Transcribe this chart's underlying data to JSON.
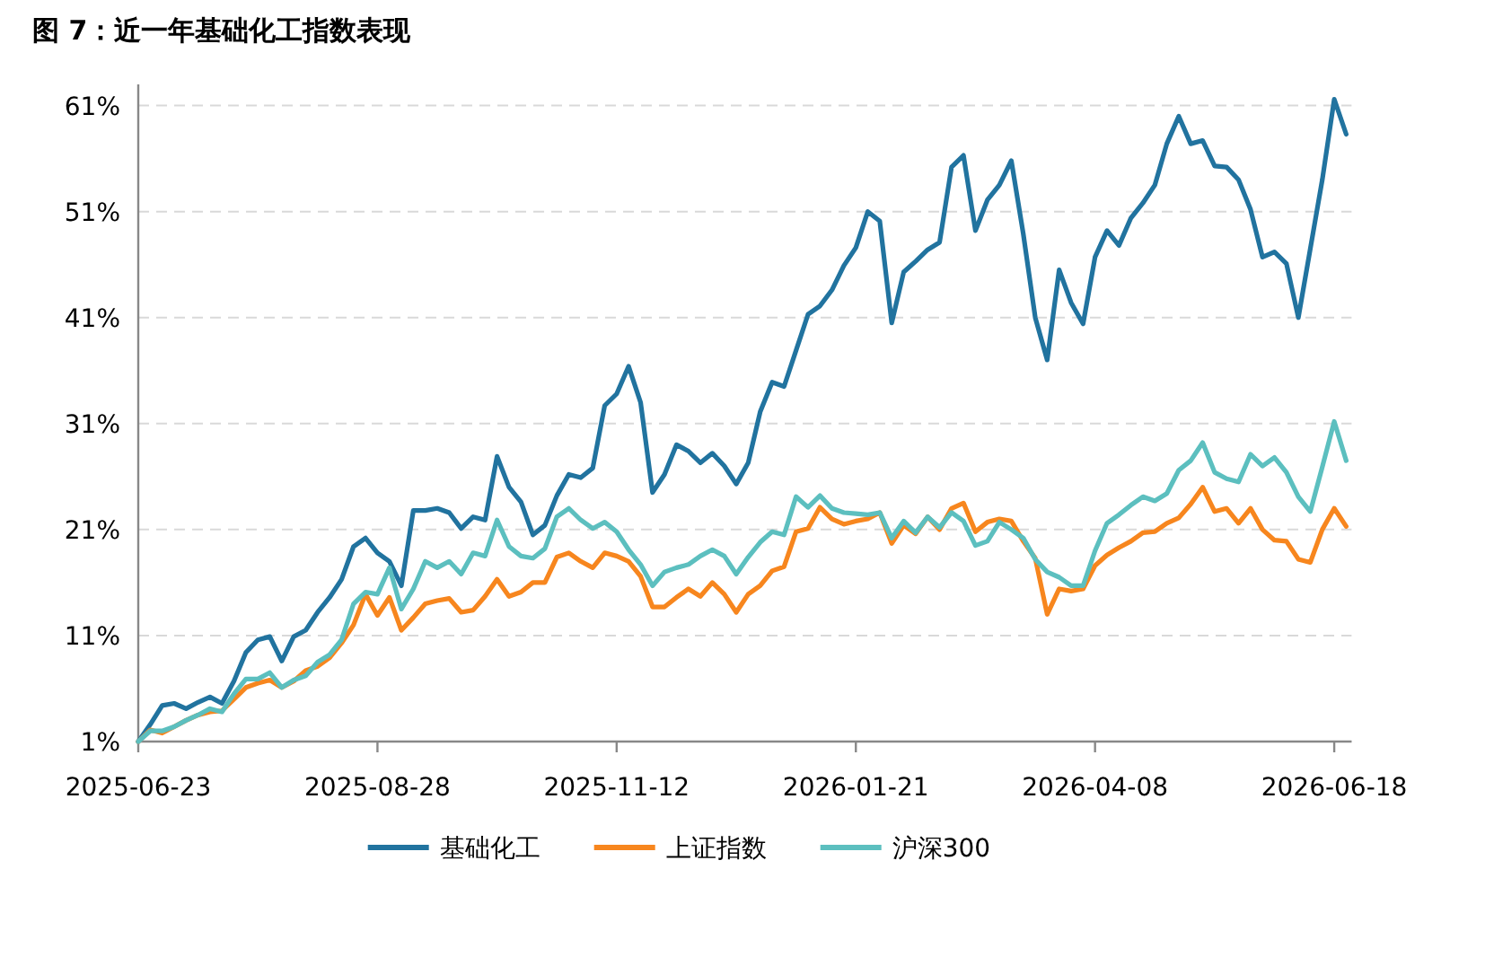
{
  "chart_data": {
    "type": "line",
    "title": "图 7：近一年基础化工指数表现",
    "categories": [
      "2025-06-23",
      null,
      null,
      null,
      null,
      null,
      null,
      null,
      null,
      null,
      null,
      null,
      null,
      null,
      null,
      null,
      null,
      null,
      null,
      null,
      "2025-08-28",
      null,
      null,
      null,
      null,
      null,
      null,
      null,
      null,
      null,
      null,
      null,
      null,
      null,
      null,
      null,
      null,
      null,
      null,
      null,
      "2025-11-12",
      null,
      null,
      null,
      null,
      null,
      null,
      null,
      null,
      null,
      null,
      null,
      null,
      null,
      null,
      null,
      null,
      null,
      null,
      null,
      "2026-01-21",
      null,
      null,
      null,
      null,
      null,
      null,
      null,
      null,
      null,
      null,
      null,
      null,
      null,
      null,
      null,
      null,
      null,
      null,
      null,
      "2026-04-08",
      null,
      null,
      null,
      null,
      null,
      null,
      null,
      null,
      null,
      null,
      null,
      null,
      null,
      null,
      null,
      null,
      null,
      null,
      null,
      "2026-06-18",
      null
    ],
    "series": [
      {
        "name": "基础化工",
        "color": "#21739f",
        "values": [
          1,
          2.6,
          4.4,
          4.6,
          4.1,
          4.7,
          5.2,
          4.6,
          6.7,
          9.4,
          10.6,
          10.9,
          8.6,
          10.9,
          11.5,
          13.2,
          14.6,
          16.3,
          19.4,
          20.2,
          18.8,
          18,
          15.7,
          22.8,
          22.8,
          23,
          22.6,
          21.1,
          22.2,
          21.9,
          27.9,
          25,
          23.6,
          20.5,
          21.4,
          24.2,
          26.2,
          25.9,
          26.8,
          32.7,
          33.8,
          36.4,
          33,
          24.5,
          26.2,
          29,
          28.4,
          27.3,
          28.2,
          27,
          25.3,
          27.3,
          32.1,
          34.9,
          34.5,
          37.9,
          41.3,
          42.1,
          43.6,
          45.9,
          47.6,
          51,
          50.1,
          40.5,
          45.3,
          46.3,
          47.4,
          48.1,
          55.2,
          56.3,
          49.2,
          52.1,
          53.5,
          55.8,
          48.9,
          41,
          37,
          45.5,
          42.4,
          40.4,
          46.7,
          49.2,
          47.8,
          50.4,
          51.8,
          53.5,
          57.4,
          60,
          57.4,
          57.7,
          55.3,
          55.2,
          54,
          51.2,
          46.7,
          47.2,
          46.1,
          41,
          47.5,
          54,
          61.6,
          58.3
        ]
      },
      {
        "name": "上证指数",
        "color": "#f7861e",
        "values": [
          1,
          2.1,
          1.8,
          2.4,
          3,
          3.5,
          3.8,
          3.9,
          5,
          6.1,
          6.5,
          6.8,
          6.1,
          6.7,
          7.7,
          8.1,
          8.9,
          10.3,
          12,
          14.9,
          12.9,
          14.6,
          11.5,
          12.7,
          14,
          14.3,
          14.5,
          13.2,
          13.4,
          14.7,
          16.3,
          14.7,
          15.1,
          16,
          16,
          18.4,
          18.8,
          18,
          17.4,
          18.8,
          18.5,
          18,
          16.6,
          13.7,
          13.7,
          14.6,
          15.4,
          14.7,
          16,
          14.9,
          13.2,
          14.9,
          15.7,
          17.1,
          17.5,
          20.8,
          21.1,
          23.1,
          22,
          21.5,
          21.8,
          22,
          22.6,
          19.7,
          21.4,
          20.6,
          22.2,
          21,
          23,
          23.5,
          20.8,
          21.7,
          22,
          21.8,
          19.9,
          18.3,
          13,
          15.4,
          15.2,
          15.4,
          17.6,
          18.6,
          19.3,
          19.9,
          20.7,
          20.8,
          21.6,
          22.1,
          23.4,
          25,
          22.7,
          23,
          21.6,
          23,
          21,
          20,
          19.9,
          18.2,
          17.9,
          21,
          23,
          21.3
        ]
      },
      {
        "name": "沪深300",
        "color": "#5cbfbf",
        "values": [
          1,
          2,
          2,
          2.4,
          3,
          3.5,
          4.1,
          3.8,
          5.5,
          6.9,
          6.9,
          7.5,
          6.1,
          6.8,
          7.2,
          8.5,
          9.2,
          10.6,
          14,
          15.1,
          14.9,
          17.4,
          13.5,
          15.4,
          18,
          17.4,
          18,
          16.8,
          18.8,
          18.5,
          21.9,
          19.4,
          18.5,
          18.3,
          19.2,
          22.2,
          23,
          21.9,
          21.1,
          21.7,
          20.8,
          19.1,
          17.7,
          15.7,
          17,
          17.4,
          17.7,
          18.5,
          19.1,
          18.5,
          16.8,
          18.4,
          19.8,
          20.8,
          20.5,
          24.1,
          23.1,
          24.2,
          23,
          22.6,
          22.5,
          22.4,
          22.6,
          20.2,
          21.8,
          20.7,
          22.2,
          21.2,
          22.6,
          21.8,
          19.5,
          19.9,
          21.7,
          21,
          20.2,
          18.2,
          17,
          16.5,
          15.7,
          15.7,
          19,
          21.6,
          22.4,
          23.3,
          24.1,
          23.7,
          24.4,
          26.6,
          27.5,
          29.2,
          26.4,
          25.8,
          25.5,
          28.1,
          27,
          27.8,
          26.4,
          24.1,
          22.7,
          26.9,
          31.2,
          27.5
        ]
      }
    ],
    "ylim": [
      1,
      63
    ],
    "yticks": [
      {
        "value": 1,
        "label": "1%"
      },
      {
        "value": 11,
        "label": "11%"
      },
      {
        "value": 21,
        "label": "21%"
      },
      {
        "value": 31,
        "label": "31%"
      },
      {
        "value": 41,
        "label": "41%"
      },
      {
        "value": 51,
        "label": "51%"
      },
      {
        "value": 61,
        "label": "61%"
      }
    ],
    "grid": "y",
    "legend": "bottom"
  }
}
